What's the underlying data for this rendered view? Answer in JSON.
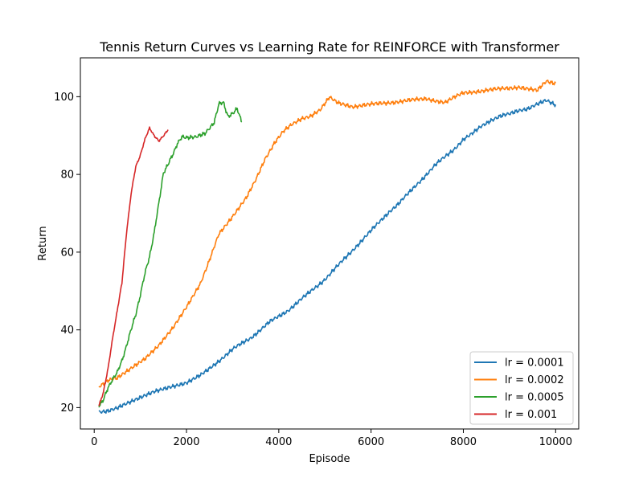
{
  "chart_data": {
    "type": "line",
    "title": "Tennis Return Curves vs Learning Rate for REINFORCE with Transformer",
    "xlabel": "Episode",
    "ylabel": "Return",
    "xlim": [
      -300,
      10500
    ],
    "ylim": [
      14.5,
      110
    ],
    "xticks": [
      0,
      2000,
      4000,
      6000,
      8000,
      10000
    ],
    "yticks": [
      20,
      40,
      60,
      80,
      100
    ],
    "grid": false,
    "legend_position": "lower-right",
    "series": [
      {
        "name": "lr = 0.0001",
        "color": "#1f77b4",
        "x": [
          100,
          300,
          500,
          700,
          1000,
          1300,
          1600,
          2000,
          2300,
          2600,
          2800,
          3000,
          3200,
          3400,
          3600,
          3800,
          4000,
          4200,
          4400,
          4600,
          4800,
          5000,
          5200,
          5400,
          5600,
          5800,
          6000,
          6200,
          6400,
          6600,
          6800,
          7000,
          7200,
          7400,
          7600,
          7800,
          8000,
          8200,
          8400,
          8600,
          8800,
          9000,
          9200,
          9400,
          9600,
          9800,
          10000
        ],
        "y": [
          19.0,
          19.2,
          19.8,
          21.0,
          22.5,
          24.0,
          25.0,
          26.5,
          28.5,
          31.0,
          33.0,
          35.0,
          36.5,
          38.0,
          40.0,
          42.0,
          43.5,
          45.0,
          47.0,
          49.0,
          51.0,
          53.0,
          55.5,
          58.0,
          60.5,
          63.0,
          65.5,
          68.0,
          70.5,
          72.5,
          75.0,
          77.5,
          80.0,
          82.5,
          84.5,
          86.5,
          89.0,
          90.5,
          92.5,
          94.0,
          95.0,
          95.5,
          96.5,
          97.0,
          98.0,
          99.0,
          98.0
        ]
      },
      {
        "name": "lr = 0.0002",
        "color": "#ff7f0e",
        "x": [
          100,
          300,
          500,
          800,
          1100,
          1400,
          1700,
          2000,
          2300,
          2500,
          2700,
          3000,
          3300,
          3500,
          3700,
          3900,
          4100,
          4300,
          4500,
          4700,
          4900,
          5100,
          5300,
          5600,
          6000,
          6400,
          6800,
          7200,
          7600,
          8000,
          8400,
          8800,
          9200,
          9600,
          9800,
          10000
        ],
        "y": [
          25.5,
          27.0,
          27.5,
          30.0,
          32.5,
          36.0,
          40.5,
          46.0,
          52.0,
          58.0,
          64.5,
          69.0,
          74.0,
          78.5,
          84.0,
          88.0,
          91.0,
          93.0,
          94.5,
          95.0,
          96.5,
          100.0,
          98.5,
          97.5,
          98.0,
          98.5,
          99.0,
          99.5,
          98.5,
          101.0,
          101.5,
          102.0,
          102.5,
          101.5,
          104.0,
          103.5
        ]
      },
      {
        "name": "lr = 0.0005",
        "color": "#2ca02c",
        "x": [
          100,
          200,
          300,
          400,
          500,
          600,
          700,
          800,
          900,
          1000,
          1100,
          1200,
          1300,
          1400,
          1500,
          1600,
          1700,
          1800,
          1900,
          2000,
          2200,
          2400,
          2600,
          2700,
          2800,
          2900,
          3000,
          3100,
          3200
        ],
        "y": [
          20.5,
          22.0,
          25.0,
          27.5,
          29.0,
          32.0,
          36.0,
          40.0,
          44.0,
          49.0,
          54.5,
          59.0,
          65.0,
          72.5,
          80.5,
          82.5,
          85.0,
          88.0,
          89.5,
          89.5,
          89.5,
          90.5,
          93.5,
          98.0,
          98.5,
          95.0,
          95.5,
          97.0,
          93.5
        ]
      },
      {
        "name": "lr = 0.001",
        "color": "#d62728",
        "x": [
          100,
          200,
          300,
          400,
          500,
          600,
          700,
          800,
          900,
          1000,
          1100,
          1200,
          1300,
          1400,
          1500,
          1600
        ],
        "y": [
          20.5,
          24.0,
          30.0,
          38.0,
          45.0,
          52.0,
          65.0,
          75.0,
          82.0,
          85.0,
          89.0,
          92.0,
          90.0,
          88.5,
          90.0,
          91.5
        ]
      }
    ]
  }
}
